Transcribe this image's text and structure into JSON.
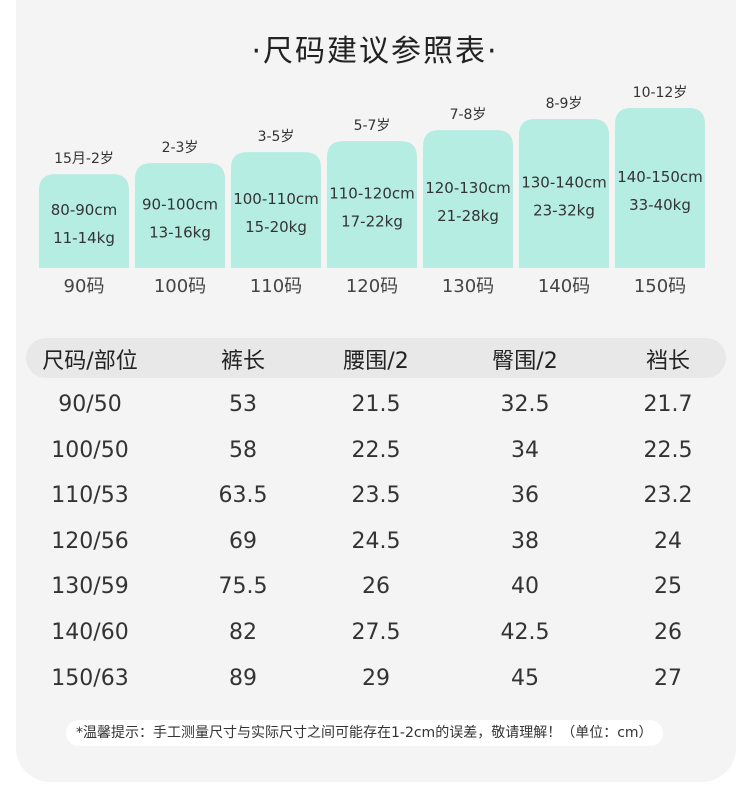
{
  "title": "·尺码建议参照表·",
  "chart_data": {
    "type": "bar",
    "categories": [
      "90码",
      "100码",
      "110码",
      "120码",
      "130码",
      "140码",
      "150码"
    ],
    "age_labels": [
      "15月-2岁",
      "2-3岁",
      "3-5岁",
      "5-7岁",
      "7-8岁",
      "8-9岁",
      "10-12岁"
    ],
    "height_labels": [
      "80-90cm",
      "90-100cm",
      "100-110cm",
      "110-120cm",
      "120-130cm",
      "130-140cm",
      "140-150cm"
    ],
    "weight_labels": [
      "11-14kg",
      "13-16kg",
      "15-20kg",
      "17-22kg",
      "21-28kg",
      "23-32kg",
      "33-40kg"
    ],
    "values": [
      85,
      95,
      105,
      115,
      125,
      135,
      145
    ],
    "title": "",
    "xlabel": "",
    "ylabel": "",
    "ylim": [
      0,
      150
    ],
    "grid": false,
    "bar_color": "#b5ede2"
  },
  "table": {
    "headers": [
      "尺码/部位",
      "裤长",
      "腰围/2",
      "臀围/2",
      "裆长"
    ],
    "rows": [
      [
        "90/50",
        "53",
        "21.5",
        "32.5",
        "21.7"
      ],
      [
        "100/50",
        "58",
        "22.5",
        "34",
        "22.5"
      ],
      [
        "110/53",
        "63.5",
        "23.5",
        "36",
        "23.2"
      ],
      [
        "120/56",
        "69",
        "24.5",
        "38",
        "24"
      ],
      [
        "130/59",
        "75.5",
        "26",
        "40",
        "25"
      ],
      [
        "140/60",
        "82",
        "27.5",
        "42.5",
        "26"
      ],
      [
        "150/63",
        "89",
        "29",
        "45",
        "27"
      ]
    ]
  },
  "note": "*温馨提示：手工测量尺寸与实际尺寸之间可能存在1-2cm的误差，敬请理解！（单位：cm）"
}
